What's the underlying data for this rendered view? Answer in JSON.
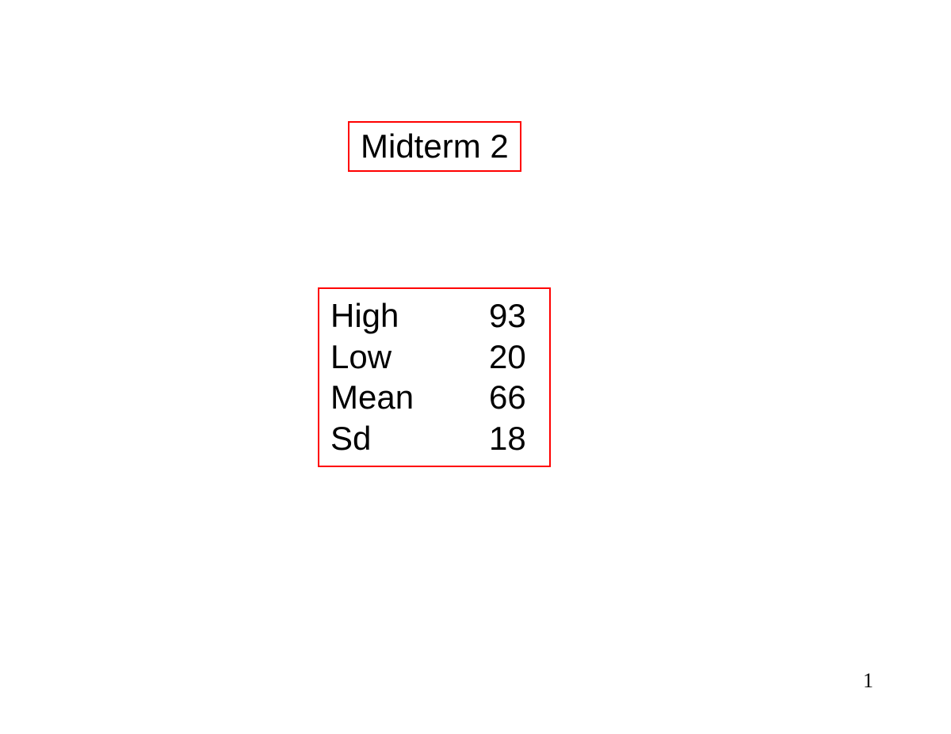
{
  "title": "Midterm 2",
  "stats": {
    "rows": [
      {
        "label": "High",
        "value": "93"
      },
      {
        "label": "Low",
        "value": "20"
      },
      {
        "label": "Mean",
        "value": "66"
      },
      {
        "label": "Sd",
        "value": "18"
      }
    ]
  },
  "page_number": "1",
  "styling": {
    "background_color": "#ffffff",
    "border_color": "#ff0000",
    "text_color": "#000000",
    "title_fontsize": 42,
    "stats_fontsize": 42,
    "page_number_fontsize": 26,
    "font_family": "Helvetica, Arial, sans-serif",
    "page_number_font_family": "Times New Roman, Times, serif"
  }
}
